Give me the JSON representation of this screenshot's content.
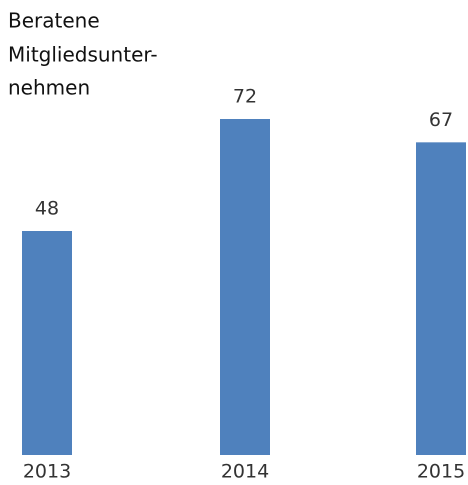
{
  "chart_data": {
    "type": "bar",
    "title": [
      "Beratene",
      "Mitgliedsunter-",
      "nehmen"
    ],
    "categories": [
      "2013",
      "2014",
      "2015"
    ],
    "values": [
      48,
      72,
      67
    ],
    "color": "#4f81bd"
  }
}
